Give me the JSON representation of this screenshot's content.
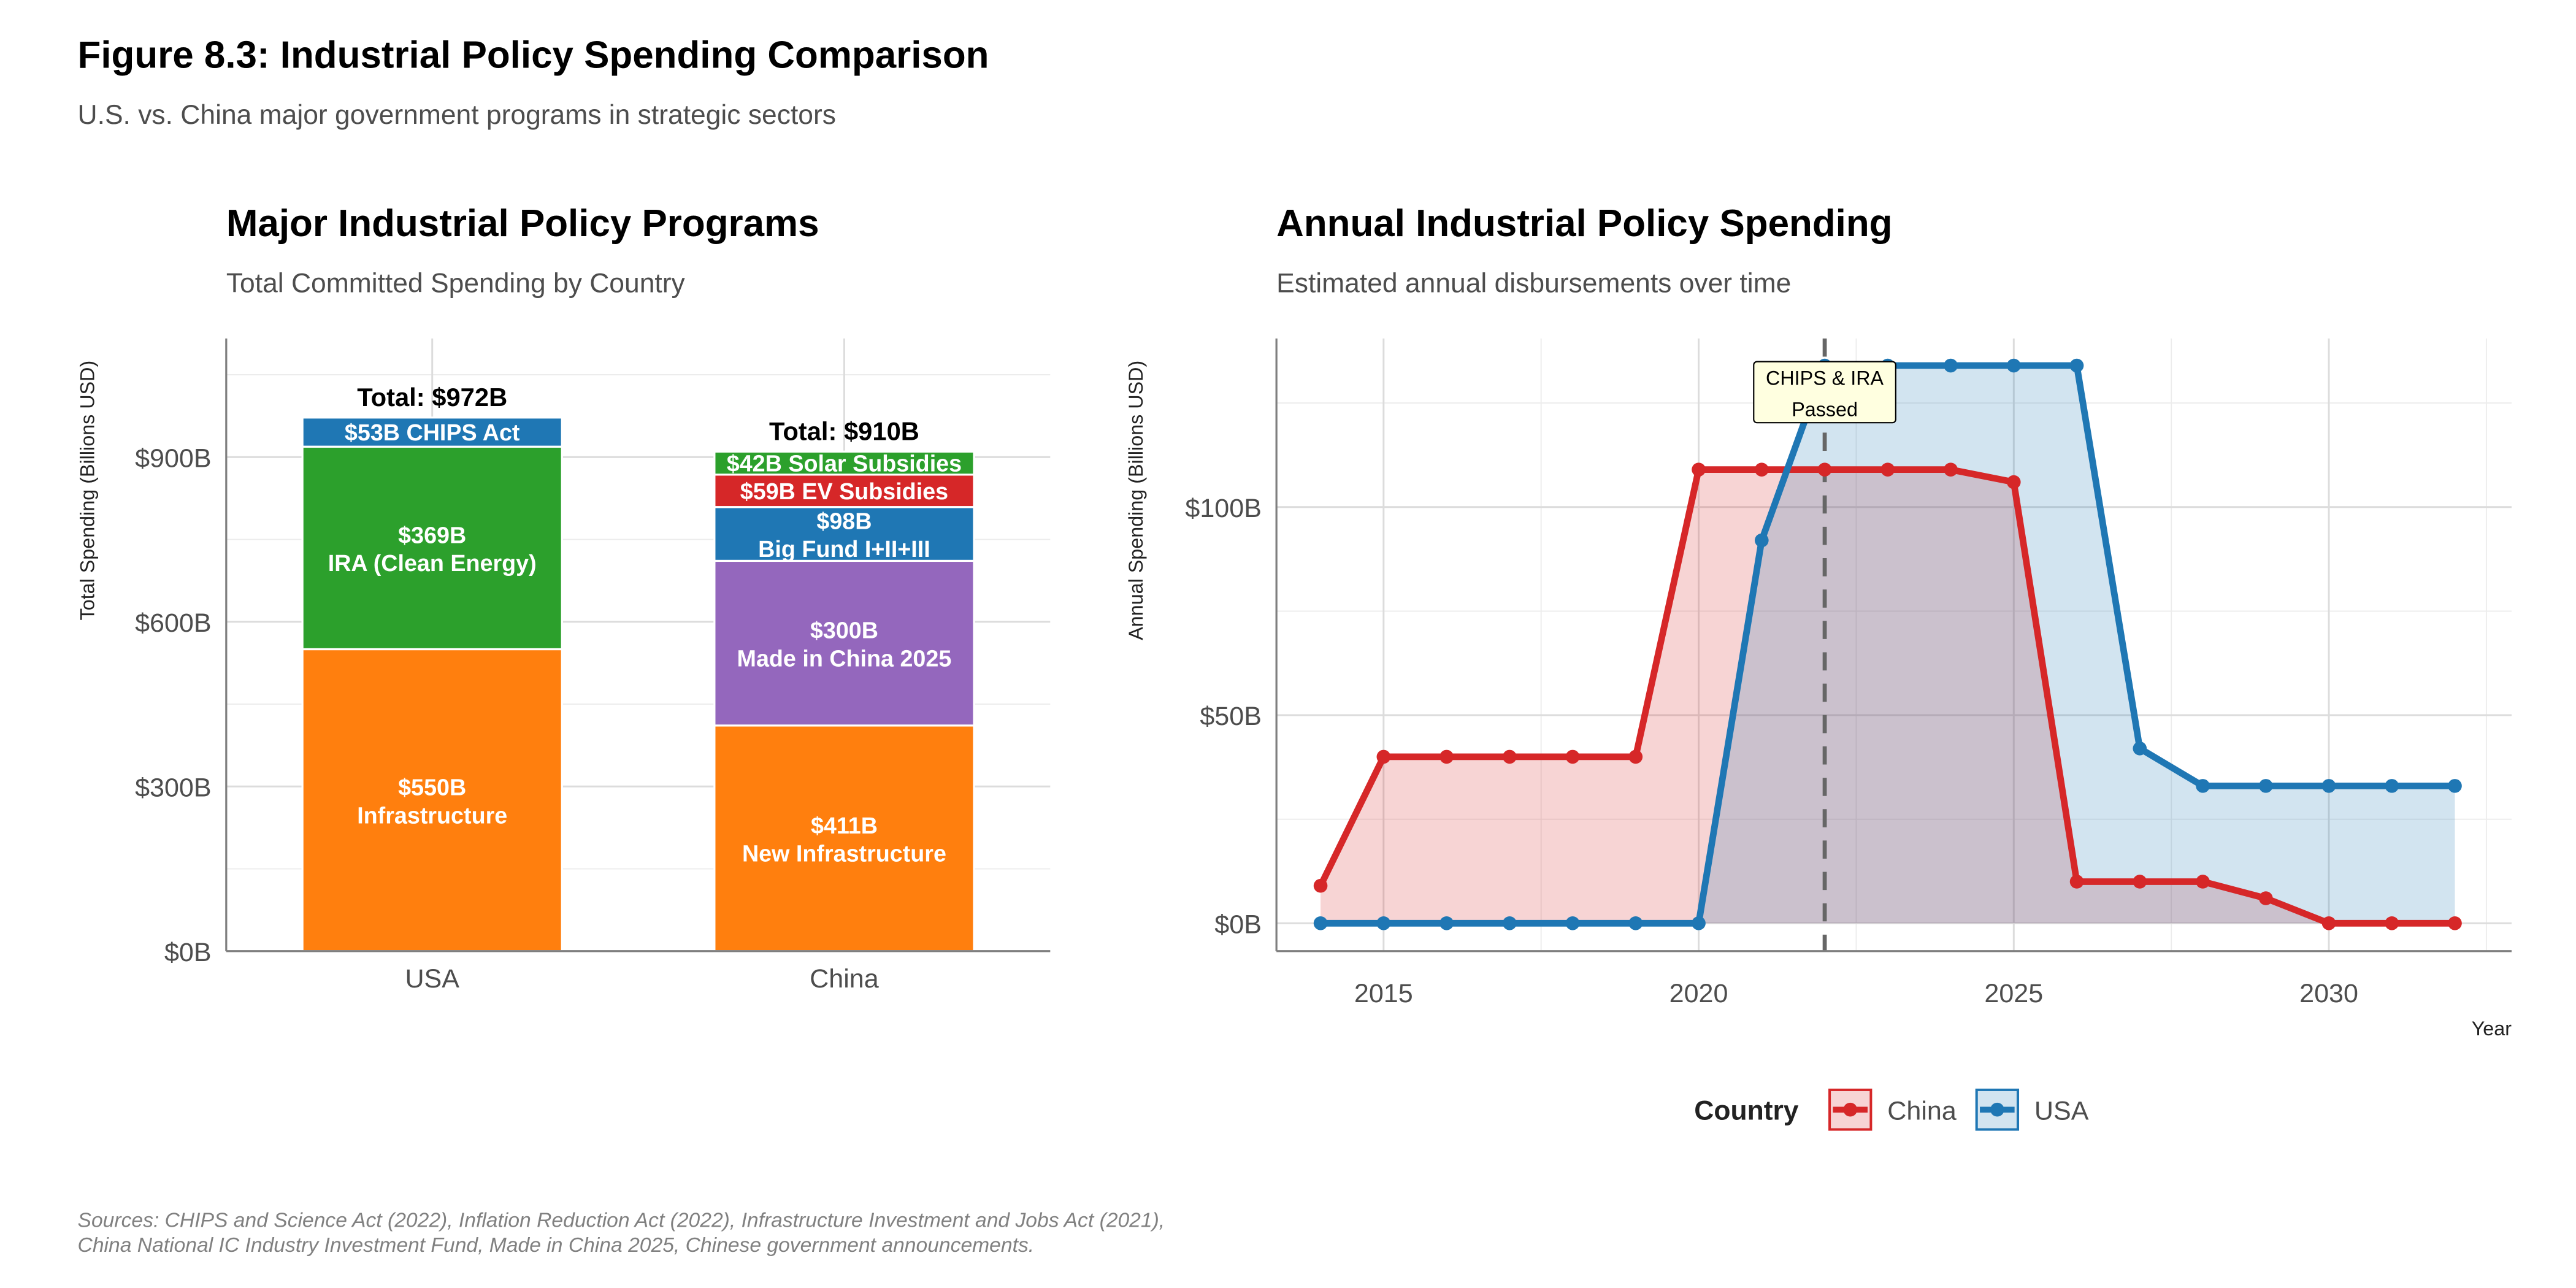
{
  "figure": {
    "title": "Figure 8.3: Industrial Policy Spending Comparison",
    "subtitle": "U.S. vs. China major government programs in strategic sectors",
    "sources_line1": "Sources: CHIPS and Science Act (2022), Inflation Reduction Act (2022), Infrastructure Investment and Jobs Act (2021),",
    "sources_line2": "China National IC Industry Investment Fund, Made in China 2025, Chinese government announcements."
  },
  "chart_data": [
    {
      "type": "bar",
      "stacked": true,
      "title": "Major Industrial Policy Programs",
      "subtitle": "Total Committed Spending by Country",
      "xlabel": "",
      "ylabel": "Total Spending (Billions USD)",
      "ylim": [
        0,
        1116
      ],
      "grid": true,
      "yticks": [
        0,
        300,
        600,
        900
      ],
      "ytick_labels": [
        "$0B",
        "$300B",
        "$600B",
        "$900B"
      ],
      "categories": [
        "USA",
        "China"
      ],
      "totals_labels": [
        "Total: $972B",
        "Total: $910B"
      ],
      "stacks": [
        [
          {
            "program": "Infrastructure",
            "value": 550,
            "label": "$550B",
            "color": "#ff7f0e"
          },
          {
            "program": "IRA (Clean Energy)",
            "value": 369,
            "label": "$369B",
            "color": "#2ca02c"
          },
          {
            "program": "CHIPS Act",
            "value": 53,
            "label": "$53B",
            "color": "#1f77b4"
          }
        ],
        [
          {
            "program": "New Infrastructure",
            "value": 411,
            "label": "$411B",
            "color": "#ff7f0e"
          },
          {
            "program": "Made in China 2025",
            "value": 300,
            "label": "$300B",
            "color": "#9467bd"
          },
          {
            "program": "Big Fund I+II+III",
            "value": 98,
            "label": "$98B",
            "color": "#1f77b4"
          },
          {
            "program": "EV Subsidies",
            "value": 59,
            "label": "$59B",
            "color": "#d62728"
          },
          {
            "program": "Solar Subsidies",
            "value": 42,
            "label": "$42B",
            "color": "#2ca02c"
          }
        ]
      ]
    },
    {
      "type": "area",
      "title": "Annual Industrial Policy Spending",
      "subtitle": "Estimated annual disbursements over time",
      "xlabel": "Year",
      "ylabel": "Annual Spending (Billions USD)",
      "xlim": [
        2013.3,
        2032.9
      ],
      "ylim": [
        -6.7,
        140.5
      ],
      "grid": true,
      "xticks": [
        2015,
        2020,
        2025,
        2030
      ],
      "yticks": [
        0,
        50,
        100
      ],
      "ytick_labels": [
        "$0B",
        "$50B",
        "$100B"
      ],
      "x": [
        2014,
        2015,
        2016,
        2017,
        2018,
        2019,
        2020,
        2021,
        2022,
        2023,
        2024,
        2025,
        2026,
        2027,
        2028,
        2029,
        2030,
        2031,
        2032
      ],
      "series": [
        {
          "name": "China",
          "color": "#d62728",
          "values": [
            9,
            40,
            40,
            40,
            40,
            40,
            109,
            109,
            109,
            109,
            109,
            106,
            10,
            10,
            10,
            6,
            0,
            0,
            0
          ]
        },
        {
          "name": "USA",
          "color": "#1f77b4",
          "values": [
            0,
            0,
            0,
            0,
            0,
            0,
            0,
            92,
            134,
            134,
            134,
            134,
            134,
            42,
            33,
            33,
            33,
            33,
            33
          ]
        }
      ],
      "annotation": {
        "x": 2022,
        "line1": "CHIPS & IRA",
        "line2": "Passed"
      },
      "legend": {
        "title": "Country",
        "position": "bottom",
        "items": [
          "China",
          "USA"
        ]
      }
    }
  ]
}
